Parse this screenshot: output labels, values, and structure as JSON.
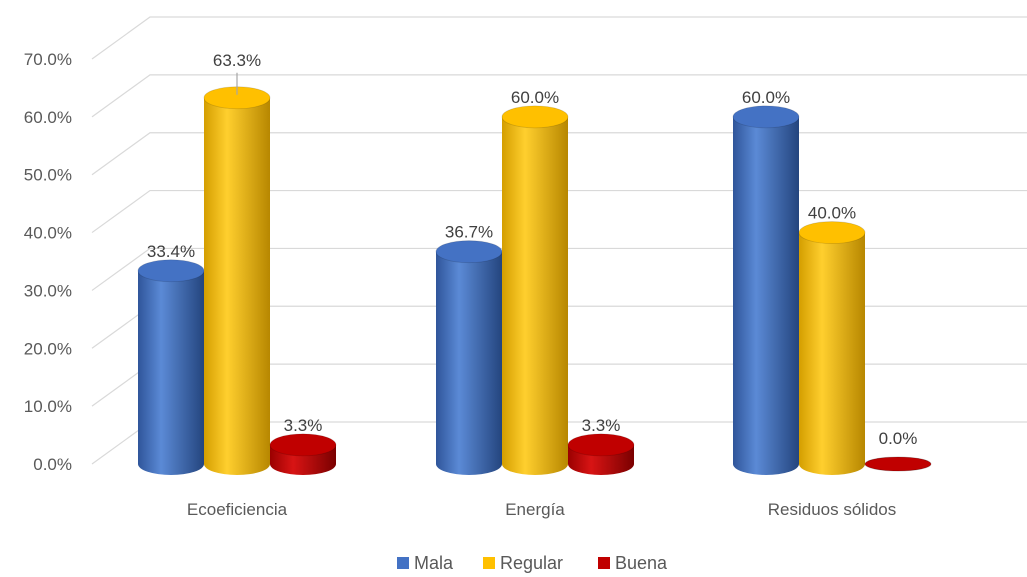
{
  "chart_data": {
    "type": "bar",
    "categories": [
      "Ecoeficiencia",
      "Energía",
      "Residuos sólidos"
    ],
    "series": [
      {
        "name": "Mala",
        "values": [
          33.4,
          36.7,
          60.0
        ],
        "labels": [
          "33.4%",
          "36.7%",
          "60.0%"
        ],
        "color": "#4472C4"
      },
      {
        "name": "Regular",
        "values": [
          63.3,
          60.0,
          40.0
        ],
        "labels": [
          "63.3%",
          "60.0%",
          "40.0%"
        ],
        "color": "#FFC000"
      },
      {
        "name": "Buena",
        "values": [
          3.3,
          3.3,
          0.0
        ],
        "labels": [
          "3.3%",
          "3.3%",
          "0.0%"
        ],
        "color": "#C00000"
      }
    ],
    "y_ticks": [
      "0.0%",
      "10.0%",
      "20.0%",
      "30.0%",
      "40.0%",
      "50.0%",
      "60.0%",
      "70.0%"
    ],
    "ylim": [
      0,
      70
    ],
    "grid": true,
    "legend_position": "bottom",
    "title": "",
    "xlabel": "",
    "ylabel": ""
  }
}
